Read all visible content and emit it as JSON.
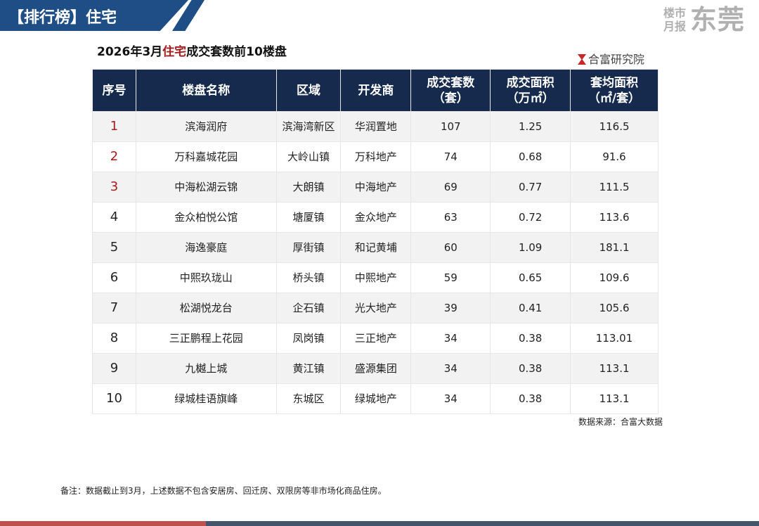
{
  "header": {
    "section_title": "【排行榜】住宅",
    "logo_small_1": "楼市",
    "logo_small_2": "月报",
    "logo_big": "东莞"
  },
  "table_title": {
    "prefix": "2026年3月",
    "highlight": "住宅",
    "suffix": "成交套数前10楼盘"
  },
  "brand": "合富研究院",
  "colors": {
    "header_bg": "#152a4d",
    "accent_red": "#a51c1c",
    "banner_blue": "#1f4e86"
  },
  "columns": [
    "序号",
    "楼盘名称",
    "区域",
    "开发商",
    "成交套数\n（套）",
    "成交面积\n（万㎡）",
    "套均面积\n（㎡/套）"
  ],
  "rows": [
    [
      "1",
      "滨海润府",
      "滨海湾新区",
      "华润置地",
      "107",
      "1.25",
      "116.5"
    ],
    [
      "2",
      "万科嘉城花园",
      "大岭山镇",
      "万科地产",
      "74",
      "0.68",
      "91.6"
    ],
    [
      "3",
      "中海松湖云锦",
      "大朗镇",
      "中海地产",
      "69",
      "0.77",
      "111.5"
    ],
    [
      "4",
      "金众柏悦公馆",
      "塘厦镇",
      "金众地产",
      "63",
      "0.72",
      "113.6"
    ],
    [
      "5",
      "海逸豪庭",
      "厚街镇",
      "和记黄埔",
      "60",
      "1.09",
      "181.1"
    ],
    [
      "6",
      "中熙玖珑山",
      "桥头镇",
      "中熙地产",
      "59",
      "0.65",
      "109.6"
    ],
    [
      "7",
      "松湖悦龙台",
      "企石镇",
      "光大地产",
      "39",
      "0.41",
      "105.6"
    ],
    [
      "8",
      "三正鹏程上花园",
      "凤岗镇",
      "三正地产",
      "34",
      "0.38",
      "113.01"
    ],
    [
      "9",
      "九樾上城",
      "黄江镇",
      "盛源集团",
      "34",
      "0.38",
      "113.1"
    ],
    [
      "10",
      "绿城桂语旗峰",
      "东城区",
      "绿城地产",
      "34",
      "0.38",
      "113.1"
    ]
  ],
  "source": "数据来源：合富大数据",
  "note": "备注：数据截止到3月，上述数据不包含安居房、回迁房、双限房等非市场化商品住房。"
}
